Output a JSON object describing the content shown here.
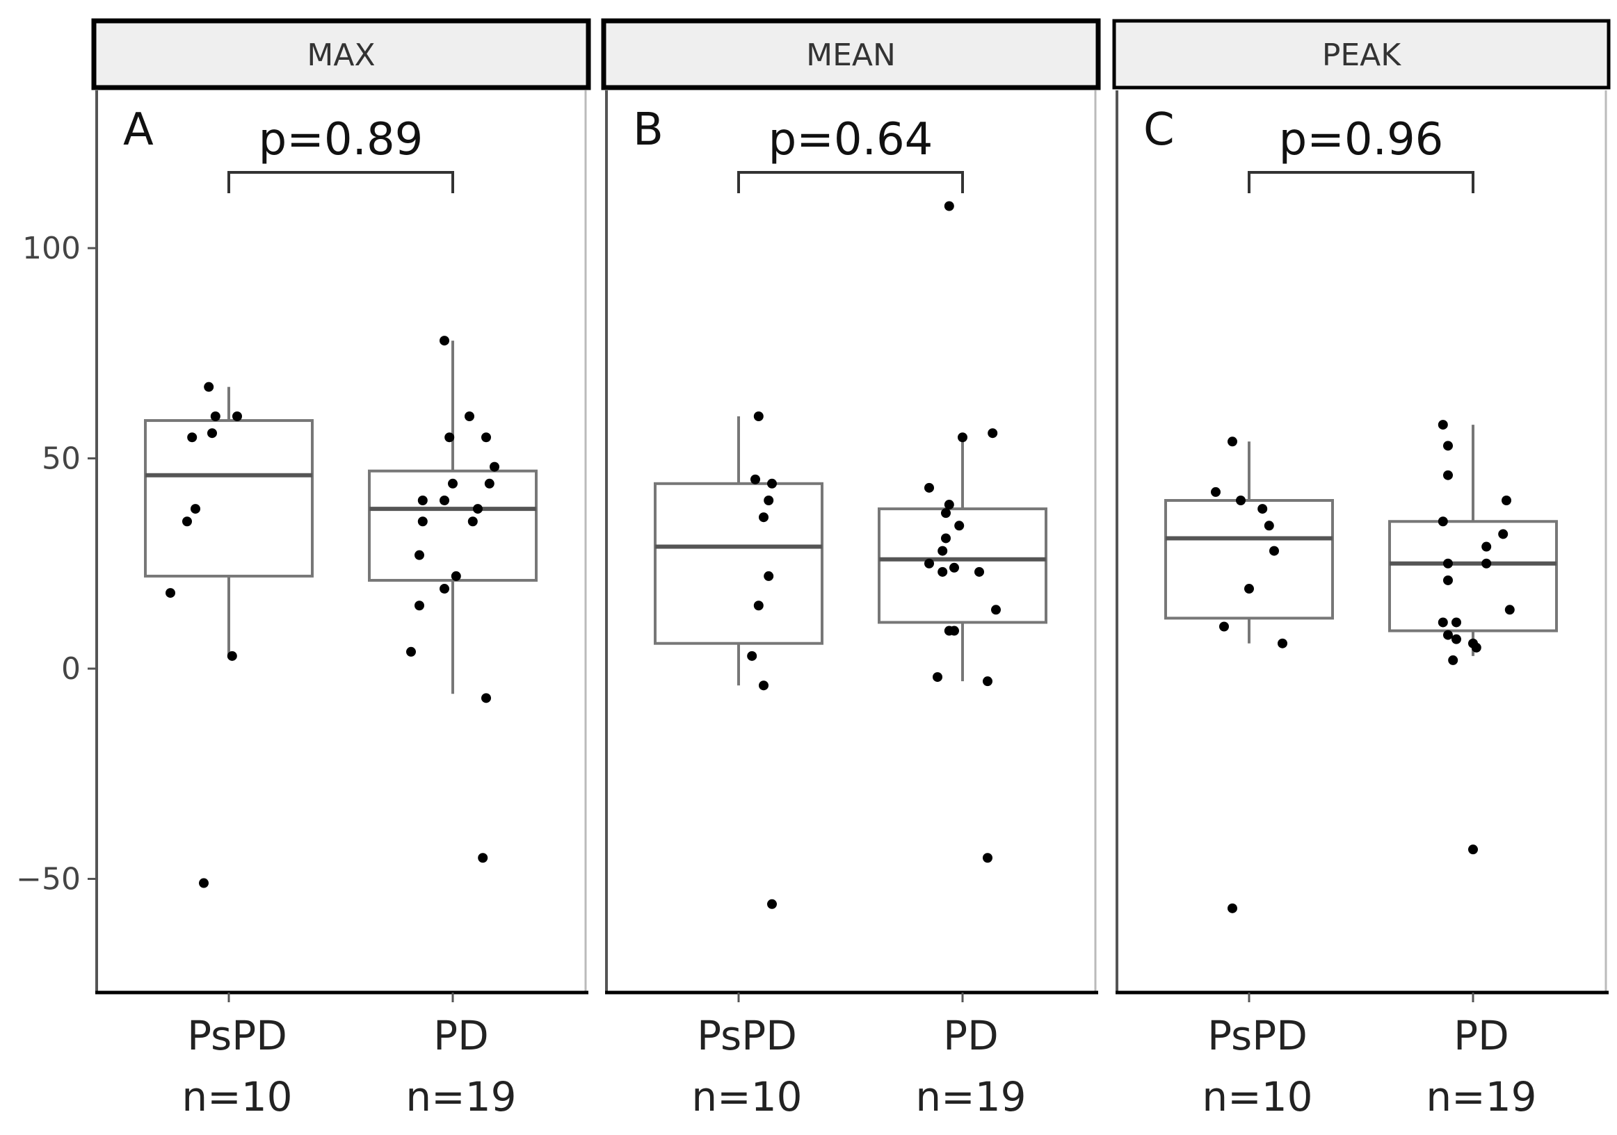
{
  "chart_data": {
    "type": "box",
    "ytick_labels": [
      "100",
      "50",
      "0",
      "−50"
    ],
    "ytick_values": [
      100,
      50,
      0,
      -50
    ],
    "ylim": [
      -77,
      135
    ],
    "grid": false,
    "legend": "none",
    "colors": {
      "box": "#777777",
      "point": "#000000",
      "strip": "#efefef",
      "frame": "#000000"
    },
    "panels": [
      {
        "strip_label": "MAX",
        "panel_letter": "A",
        "p_value_label": "p=0.89",
        "groups": [
          {
            "name": "PsPD",
            "n_label": "n=10",
            "box": {
              "q1": 22,
              "median": 46,
              "q3": 59,
              "whisker_low": 3,
              "whisker_high": 67
            },
            "points": [
              [
                -0.35,
                18
              ],
              [
                -0.25,
                35
              ],
              [
                -0.2,
                38
              ],
              [
                -0.22,
                55
              ],
              [
                -0.1,
                56
              ],
              [
                -0.08,
                60
              ],
              [
                0.05,
                60
              ],
              [
                -0.12,
                67
              ],
              [
                0.02,
                3
              ],
              [
                -0.15,
                -51
              ]
            ]
          },
          {
            "name": "PD",
            "n_label": "n=19",
            "box": {
              "q1": 21,
              "median": 38,
              "q3": 47,
              "whisker_low": -6,
              "whisker_high": 78
            },
            "points": [
              [
                -0.25,
                4
              ],
              [
                -0.2,
                15
              ],
              [
                -0.2,
                27
              ],
              [
                -0.18,
                35
              ],
              [
                -0.18,
                40
              ],
              [
                -0.05,
                40
              ],
              [
                0.0,
                44
              ],
              [
                -0.05,
                19
              ],
              [
                0.02,
                22
              ],
              [
                -0.02,
                55
              ],
              [
                0.1,
                60
              ],
              [
                0.2,
                55
              ],
              [
                0.25,
                48
              ],
              [
                0.22,
                44
              ],
              [
                0.15,
                38
              ],
              [
                0.12,
                35
              ],
              [
                0.2,
                -7
              ],
              [
                0.18,
                -45
              ],
              [
                -0.05,
                78
              ]
            ]
          }
        ]
      },
      {
        "strip_label": "MEAN",
        "panel_letter": "B",
        "p_value_label": "p=0.64",
        "groups": [
          {
            "name": "PsPD",
            "n_label": "n=10",
            "box": {
              "q1": 6,
              "median": 29,
              "q3": 44,
              "whisker_low": -4,
              "whisker_high": 60
            },
            "points": [
              [
                0.1,
                45
              ],
              [
                0.2,
                44
              ],
              [
                0.18,
                40
              ],
              [
                0.15,
                36
              ],
              [
                0.18,
                22
              ],
              [
                0.12,
                15
              ],
              [
                0.08,
                3
              ],
              [
                0.15,
                -4
              ],
              [
                0.2,
                -56
              ],
              [
                0.12,
                60
              ]
            ]
          },
          {
            "name": "PD",
            "n_label": "n=19",
            "box": {
              "q1": 11,
              "median": 26,
              "q3": 38,
              "whisker_low": -3,
              "whisker_high": 55
            },
            "points": [
              [
                -0.2,
                43
              ],
              [
                -0.1,
                37
              ],
              [
                -0.08,
                39
              ],
              [
                -0.02,
                34
              ],
              [
                -0.1,
                31
              ],
              [
                -0.12,
                28
              ],
              [
                -0.2,
                25
              ],
              [
                -0.12,
                23
              ],
              [
                -0.05,
                24
              ],
              [
                0.1,
                23
              ],
              [
                -0.08,
                9
              ],
              [
                -0.05,
                9
              ],
              [
                0.2,
                14
              ],
              [
                -0.15,
                -2
              ],
              [
                0.15,
                -3
              ],
              [
                0.15,
                -45
              ],
              [
                0.0,
                55
              ],
              [
                0.18,
                56
              ],
              [
                -0.08,
                110
              ]
            ]
          }
        ]
      },
      {
        "strip_label": "PEAK",
        "panel_letter": "C",
        "p_value_label": "p=0.96",
        "groups": [
          {
            "name": "PsPD",
            "n_label": "n=10",
            "box": {
              "q1": 12,
              "median": 31,
              "q3": 40,
              "whisker_low": 6,
              "whisker_high": 54
            },
            "points": [
              [
                -0.2,
                42
              ],
              [
                -0.05,
                40
              ],
              [
                0.08,
                38
              ],
              [
                0.12,
                34
              ],
              [
                0.15,
                28
              ],
              [
                0.0,
                19
              ],
              [
                -0.15,
                10
              ],
              [
                0.2,
                6
              ],
              [
                -0.1,
                54
              ],
              [
                -0.1,
                -57
              ]
            ]
          },
          {
            "name": "PD",
            "n_label": "n=19",
            "box": {
              "q1": 9,
              "median": 25,
              "q3": 35,
              "whisker_low": 3,
              "whisker_high": 58
            },
            "points": [
              [
                -0.15,
                53
              ],
              [
                -0.18,
                58
              ],
              [
                -0.15,
                46
              ],
              [
                -0.18,
                35
              ],
              [
                -0.15,
                21
              ],
              [
                -0.15,
                25
              ],
              [
                0.08,
                25
              ],
              [
                0.08,
                29
              ],
              [
                0.2,
                40
              ],
              [
                0.18,
                32
              ],
              [
                0.22,
                14
              ],
              [
                -0.18,
                11
              ],
              [
                -0.15,
                8
              ],
              [
                -0.1,
                7
              ],
              [
                -0.1,
                11
              ],
              [
                0.0,
                6
              ],
              [
                -0.12,
                2
              ],
              [
                0.02,
                5
              ],
              [
                0.0,
                -43
              ]
            ]
          }
        ]
      }
    ]
  }
}
